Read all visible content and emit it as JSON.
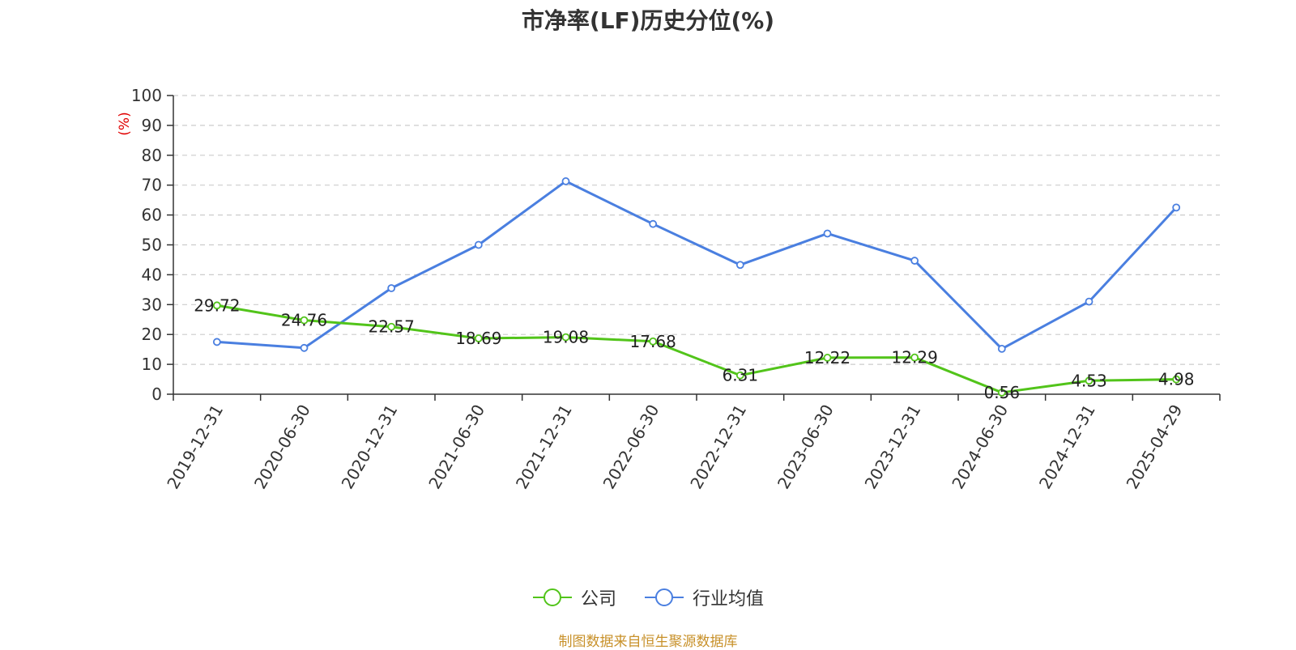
{
  "chart_data": {
    "type": "line",
    "title": "市净率(LF)历史分位(%)",
    "ylabel": "(%)",
    "xlabel": "",
    "ylim": [
      0,
      100
    ],
    "yticks": [
      0,
      10,
      20,
      30,
      40,
      50,
      60,
      70,
      80,
      90,
      100
    ],
    "grid": true,
    "legend_position": "bottom",
    "categories": [
      "2019-12-31",
      "2020-06-30",
      "2020-12-31",
      "2021-06-30",
      "2021-12-31",
      "2022-06-30",
      "2022-12-31",
      "2023-06-30",
      "2023-12-31",
      "2024-06-30",
      "2024-12-31",
      "2025-04-29"
    ],
    "series": [
      {
        "name": "公司",
        "color": "#52c41a",
        "values": [
          29.72,
          24.76,
          22.57,
          18.69,
          19.08,
          17.68,
          6.31,
          12.22,
          12.29,
          0.56,
          4.53,
          4.98
        ],
        "labels": [
          "29.72",
          "24.76",
          "22.57",
          "18.69",
          "19.08",
          "17.68",
          "6.31",
          "12.22",
          "12.29",
          "0.56",
          "4.53",
          "4.98"
        ]
      },
      {
        "name": "行业均值",
        "color": "#4a7fe0",
        "values": [
          17.5,
          15.5,
          35.5,
          50.0,
          71.3,
          57.0,
          43.3,
          53.8,
          44.7,
          15.2,
          31.0,
          62.5
        ]
      }
    ]
  },
  "footer": {
    "source": "制图数据来自恒生聚源数据库"
  }
}
